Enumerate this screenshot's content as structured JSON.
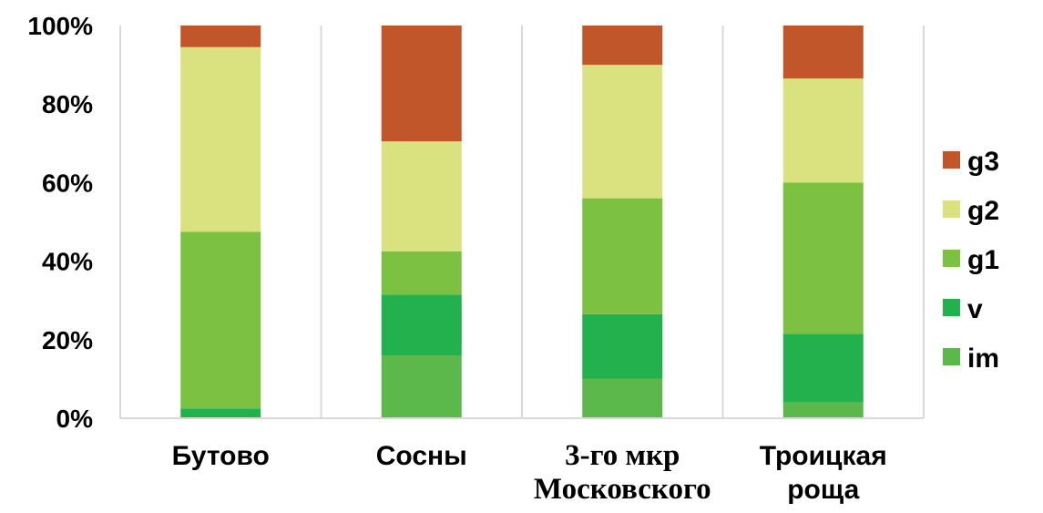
{
  "chart_data": {
    "type": "bar",
    "stacked": true,
    "normalized": true,
    "categories": [
      [
        "Бутово"
      ],
      [
        "Сосны"
      ],
      [
        "3-го мкр",
        "Московского"
      ],
      [
        "Троицкая",
        "роща"
      ]
    ],
    "series": [
      {
        "name": "im",
        "color": "#5DB84B",
        "values": [
          0,
          16,
          10,
          4
        ]
      },
      {
        "name": "v",
        "color": "#22B14C",
        "values": [
          2.5,
          15.5,
          16.5,
          17.5
        ]
      },
      {
        "name": "g1",
        "color": "#7DC142",
        "values": [
          45,
          11,
          29.5,
          38.5
        ]
      },
      {
        "name": "g2",
        "color": "#D9E27E",
        "values": [
          47,
          28,
          34,
          26.5
        ]
      },
      {
        "name": "g3",
        "color": "#C0562A",
        "values": [
          5.5,
          29.5,
          10,
          13.5
        ]
      }
    ],
    "y_ticks": [
      "0%",
      "20%",
      "40%",
      "60%",
      "80%",
      "100%"
    ],
    "ylim": [
      0,
      100
    ],
    "grid": "vertical separators",
    "legend_position": "right",
    "legend_order": [
      "g3",
      "g2",
      "g1",
      "v",
      "im"
    ]
  }
}
